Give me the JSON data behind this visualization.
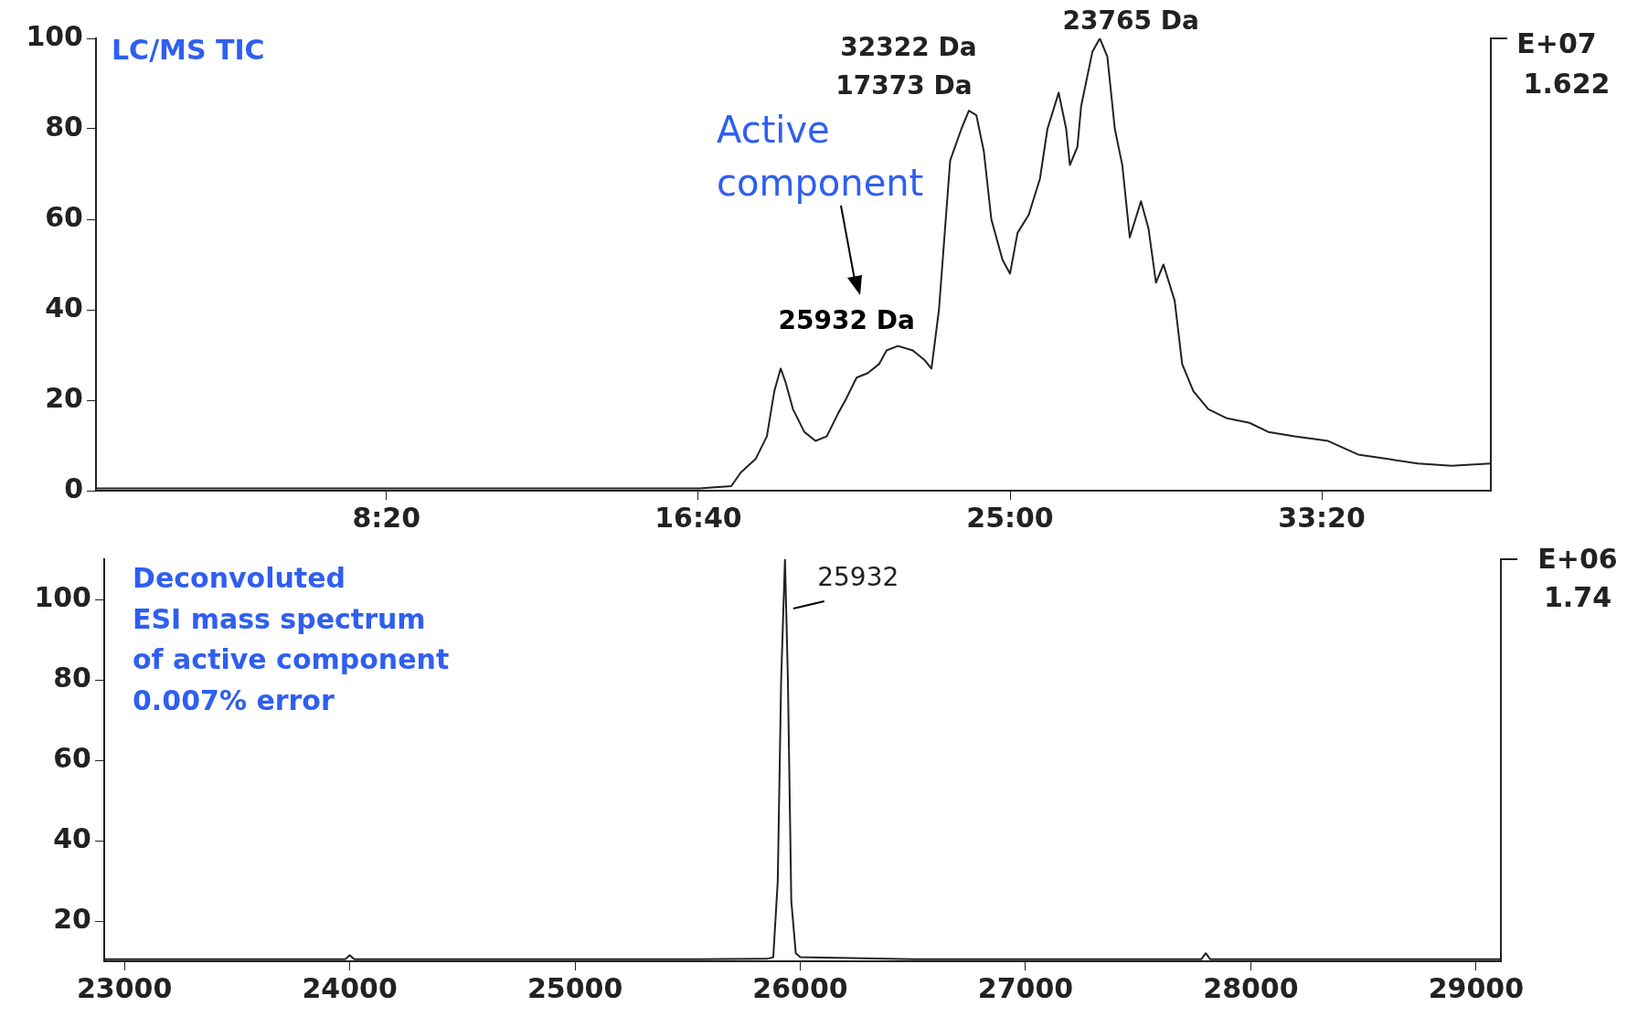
{
  "chart_data": [
    {
      "type": "line",
      "y2label": "E+07\n1.622",
      "legend": false,
      "grid": false,
      "xlim": [
        0.57,
        37.85
      ],
      "ylim": [
        0,
        100
      ],
      "yticks": [
        0,
        20,
        40,
        60,
        80,
        100
      ],
      "xticks": [
        {
          "value": 8.3333,
          "label": "8:20"
        },
        {
          "value": 16.6667,
          "label": "16:40"
        },
        {
          "value": 25,
          "label": "25:00"
        },
        {
          "value": 33.3333,
          "label": "33:20"
        }
      ],
      "annotations": [
        "LC/MS TIC",
        {
          "text": "23765 Da",
          "x": 27.4,
          "y": 100
        },
        {
          "text": "32322 Da",
          "x": 23.9,
          "y": 84
        },
        {
          "text": "17373 Da",
          "x": 23.9,
          "y": 84
        },
        {
          "text": "25932 Da",
          "x": 22.0,
          "y": 32
        },
        "Active component"
      ],
      "series": [
        {
          "color": "#222222",
          "x": [
            0.57,
            5,
            10,
            15,
            16.7,
            17.55,
            17.8,
            18.2,
            18.5,
            18.7,
            18.87,
            19.0,
            19.2,
            19.5,
            19.8,
            20.1,
            20.4,
            20.6,
            20.9,
            21.2,
            21.5,
            21.7,
            22.0,
            22.4,
            22.7,
            22.9,
            23.1,
            23.4,
            23.7,
            23.9,
            24.1,
            24.3,
            24.5,
            24.8,
            25.0,
            25.2,
            25.5,
            25.8,
            26.0,
            26.3,
            26.5,
            26.6,
            26.8,
            26.9,
            27.2,
            27.4,
            27.6,
            27.8,
            28.0,
            28.2,
            28.5,
            28.7,
            28.9,
            29.1,
            29.4,
            29.6,
            29.9,
            30.3,
            30.8,
            31.4,
            31.9,
            32.6,
            33.5,
            34.3,
            35.1,
            35.9,
            36.8,
            37.85
          ],
          "values": [
            0.5,
            0.5,
            0.5,
            0.5,
            0.5,
            1,
            4,
            7,
            12,
            22,
            27,
            24,
            18,
            13,
            11,
            12,
            17,
            20,
            25,
            26,
            28,
            31,
            32,
            31,
            29,
            27,
            40,
            73,
            80,
            84,
            83,
            75,
            60,
            51,
            48,
            57,
            61,
            69,
            80,
            88,
            80,
            72,
            76,
            85,
            97,
            100,
            96,
            80,
            72,
            56,
            64,
            58,
            46,
            50,
            42,
            28,
            22,
            18,
            16,
            15,
            13,
            12,
            11,
            8,
            7,
            6,
            5.5,
            6
          ]
        }
      ]
    },
    {
      "type": "line",
      "y2label": "E+06\n1.74",
      "legend": false,
      "grid": false,
      "xlim": [
        22910,
        29110
      ],
      "ylim": [
        10,
        110
      ],
      "yticks": [
        20,
        40,
        60,
        80,
        100
      ],
      "xticks": [
        23000,
        24000,
        25000,
        26000,
        27000,
        28000,
        29000
      ],
      "annotations": [
        "Deconvoluted",
        "ESI mass spectrum",
        "of active component",
        "0.007% error",
        {
          "text": "25932",
          "x": 25932,
          "y": 110
        }
      ],
      "series": [
        {
          "color": "#222222",
          "x": [
            22910,
            23500,
            23980,
            24000,
            24020,
            24500,
            25000,
            25500,
            25850,
            25880,
            25900,
            25915,
            25932,
            25945,
            25960,
            25980,
            26000,
            26500,
            27000,
            27500,
            27780,
            27800,
            27820,
            28500,
            29110
          ],
          "values": [
            10.5,
            10.5,
            10.5,
            11.5,
            10.5,
            10.5,
            10.5,
            10.5,
            10.6,
            11,
            30,
            80,
            110,
            80,
            25,
            12,
            11,
            10.5,
            10.5,
            10.5,
            10.5,
            12,
            10.5,
            10.5,
            10.5
          ]
        }
      ]
    }
  ]
}
